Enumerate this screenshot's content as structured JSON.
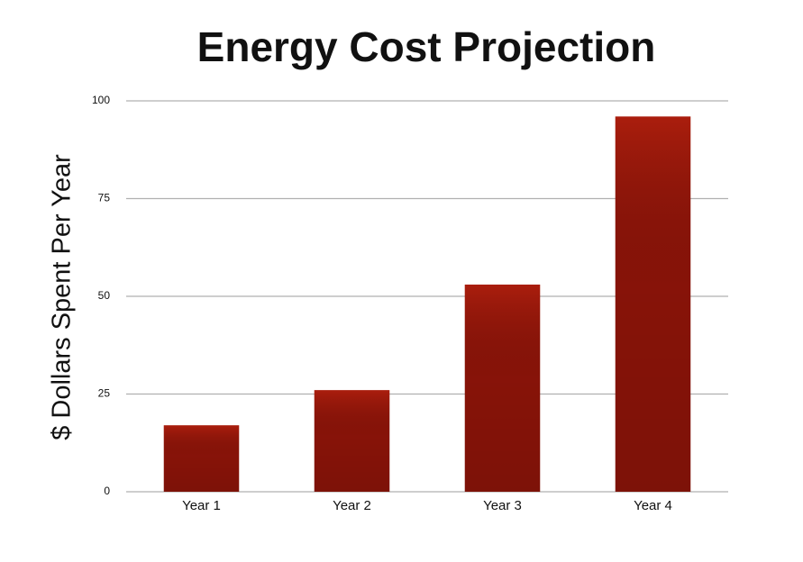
{
  "chart_data": {
    "type": "bar",
    "title": "Energy Cost Projection",
    "y_label": "$ Dollars Spent Per Year",
    "categories": [
      "Year 1",
      "Year 2",
      "Year 3",
      "Year 4"
    ],
    "values": [
      17,
      26,
      53,
      96
    ],
    "color": "#8e1409",
    "ylim": [
      0,
      100
    ],
    "yticks": [
      0,
      25,
      50,
      75,
      100
    ],
    "grid": true
  }
}
